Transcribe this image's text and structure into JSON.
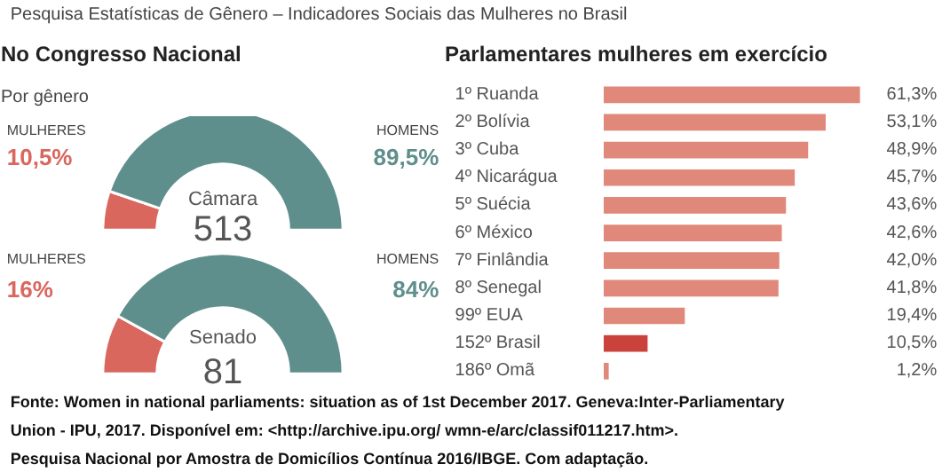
{
  "chart_data": [
    {
      "type": "donut",
      "title": "No Congresso Nacional",
      "subtitle": "Por gênero",
      "categories": [
        "MULHERES",
        "HOMENS"
      ],
      "values": [
        10.5,
        89.5
      ],
      "colors": [
        "#d9675e",
        "#5f8f8c"
      ],
      "value_labels": [
        "10,5%",
        "89,5%"
      ],
      "annotations": [
        "Pesquisa Estatísticas de Gênero – Indicadores Sociais das Mulheres no Brasil",
        "Câmara",
        "513"
      ]
    },
    {
      "type": "donut",
      "categories": [
        "MULHERES",
        "HOMENS"
      ],
      "values": [
        16,
        84
      ],
      "colors": [
        "#d9675e",
        "#5f8f8c"
      ],
      "value_labels": [
        "16%",
        "84%"
      ],
      "annotations": [
        "Senado",
        "81"
      ]
    },
    {
      "type": "bar",
      "orientation": "horizontal",
      "title": "Parlamentares mulheres em exercício",
      "categories": [
        "1º Ruanda",
        "2º Bolívia",
        "3º Cuba",
        "4º Nicarágua",
        "5º Suécia",
        "6º México",
        "7º Finlândia",
        "8º Senegal",
        "99º EUA",
        "152º Brasil",
        "186º Omã"
      ],
      "values": [
        61.3,
        53.1,
        48.9,
        45.7,
        43.6,
        42.6,
        42.0,
        41.8,
        19.4,
        10.5,
        1.2
      ],
      "colors": [
        "#e0887a",
        "#e0887a",
        "#e0887a",
        "#e0887a",
        "#e0887a",
        "#e0887a",
        "#e0887a",
        "#e0887a",
        "#e0887a",
        "#c9433c",
        "#e0887a"
      ],
      "value_labels": [
        "61,3%",
        "53,1%",
        "48,9%",
        "45,7%",
        "43,6%",
        "42,6%",
        "42,0%",
        "41,8%",
        "19,4%",
        "10,5%",
        "1,2%"
      ],
      "annotations": [
        "Fonte: Women in national parliaments: situation as of 1st December 2017. Geneva:Inter-Parliamentary Union - IPU, 2017. Disponível em: <http://archive.ipu.org/ wmn-e/arc/classif011217.htm>.",
        "Pesquisa Nacional por Amostra de Domicílios Contínua 2016/IBGE. Com adaptação."
      ]
    }
  ]
}
